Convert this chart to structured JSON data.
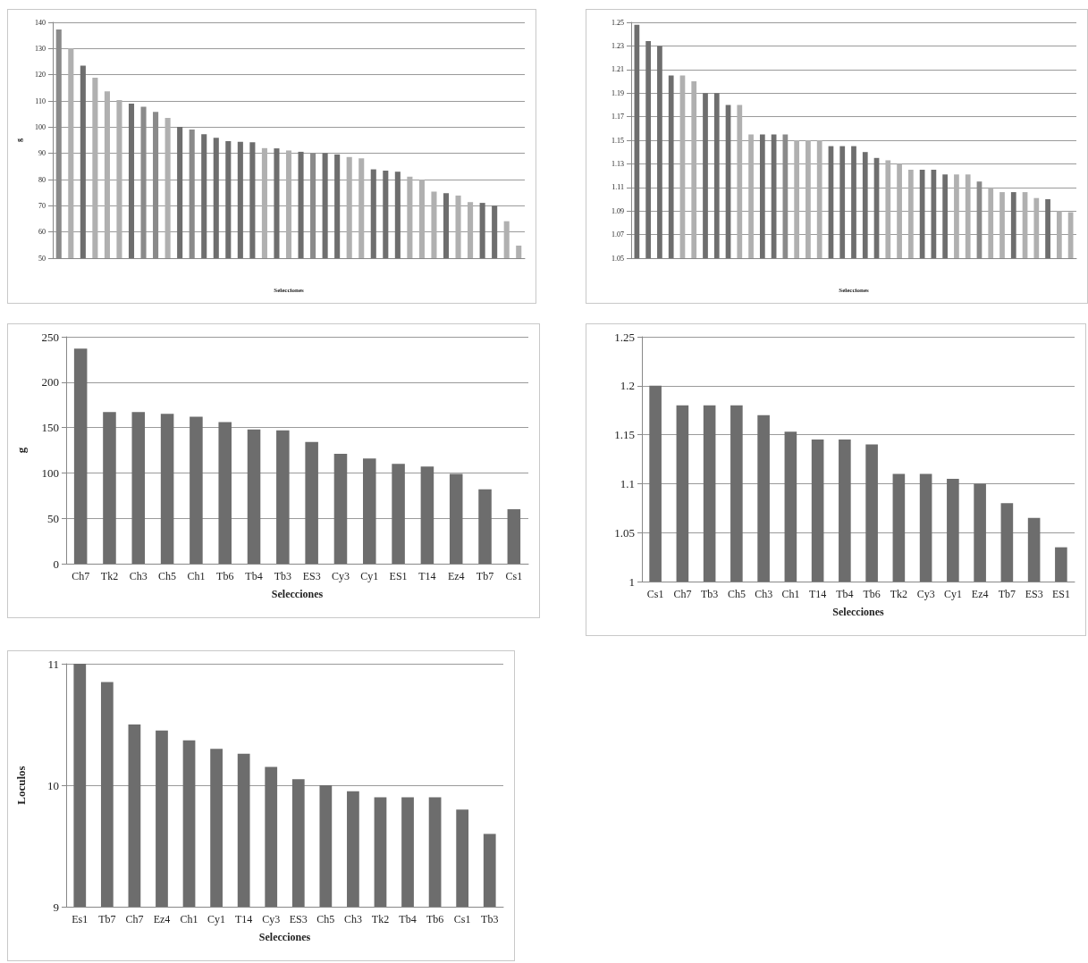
{
  "chart_data": [
    {
      "type": "bar",
      "xlabel": "Selecciones",
      "ylabel": "g",
      "categories": [
        null,
        null,
        null,
        null,
        null,
        null,
        null,
        null,
        null,
        null,
        null,
        null,
        null,
        null,
        null,
        null,
        null,
        null,
        null,
        null,
        null,
        null,
        null,
        null,
        null,
        null,
        null,
        null,
        null,
        null,
        null,
        null,
        null,
        null,
        null,
        null,
        null,
        null,
        null
      ],
      "values": [
        137.3,
        130.1,
        123.5,
        118.9,
        113.7,
        110.3,
        109.0,
        107.8,
        105.8,
        103.5,
        100.1,
        99.1,
        97.3,
        95.9,
        94.7,
        94.4,
        94.2,
        92.0,
        91.9,
        91.1,
        90.6,
        90.1,
        90.1,
        89.6,
        88.6,
        88.1,
        83.9,
        83.4,
        83.0,
        81.1,
        80.0,
        75.4,
        74.8,
        73.9,
        71.4,
        71.1,
        70.0,
        64.1,
        54.8
      ],
      "colors": [
        "#8a8a8a",
        "#b0b0b0",
        "#6e6e6e",
        "#b0b0b0",
        "#b0b0b0",
        "#b0b0b0",
        "#6e6e6e",
        "#8a8a8a",
        "#8a8a8a",
        "#b0b0b0",
        "#6e6e6e",
        "#8a8a8a",
        "#6e6e6e",
        "#6e6e6e",
        "#6e6e6e",
        "#6e6e6e",
        "#6e6e6e",
        "#b0b0b0",
        "#6e6e6e",
        "#b0b0b0",
        "#6e6e6e",
        "#8a8a8a",
        "#6e6e6e",
        "#6e6e6e",
        "#b0b0b0",
        "#b0b0b0",
        "#6e6e6e",
        "#6e6e6e",
        "#6e6e6e",
        "#b0b0b0",
        "#b0b0b0",
        "#b0b0b0",
        "#6e6e6e",
        "#b0b0b0",
        "#b0b0b0",
        "#6e6e6e",
        "#6e6e6e",
        "#b0b0b0",
        "#b0b0b0"
      ],
      "ylim": [
        50,
        140
      ],
      "yticks": [
        50,
        60,
        70,
        80,
        90,
        100,
        110,
        120,
        130,
        140
      ],
      "grid": "y"
    },
    {
      "type": "bar",
      "xlabel": "Selecciones",
      "categories": [
        null,
        null,
        null,
        null,
        null,
        null,
        null,
        null,
        null,
        null,
        null,
        null,
        null,
        null,
        null,
        null,
        null,
        null,
        null,
        null,
        null,
        null,
        null,
        null,
        null,
        null,
        null,
        null,
        null,
        null,
        null,
        null,
        null,
        null,
        null,
        null,
        null,
        null,
        null
      ],
      "values": [
        1.248,
        1.234,
        1.23,
        1.205,
        1.205,
        1.2,
        1.19,
        1.19,
        1.18,
        1.18,
        1.155,
        1.155,
        1.155,
        1.155,
        1.15,
        1.15,
        1.15,
        1.145,
        1.145,
        1.145,
        1.14,
        1.135,
        1.133,
        1.13,
        1.125,
        1.125,
        1.125,
        1.121,
        1.121,
        1.121,
        1.115,
        1.11,
        1.106,
        1.106,
        1.106,
        1.101,
        1.1,
        1.09,
        1.089
      ],
      "colors": [
        "#6e6e6e",
        "#6e6e6e",
        "#6e6e6e",
        "#6e6e6e",
        "#b0b0b0",
        "#b0b0b0",
        "#6e6e6e",
        "#6e6e6e",
        "#6e6e6e",
        "#b0b0b0",
        "#b0b0b0",
        "#6e6e6e",
        "#6e6e6e",
        "#8a8a8a",
        "#b0b0b0",
        "#b0b0b0",
        "#b0b0b0",
        "#6e6e6e",
        "#6e6e6e",
        "#6e6e6e",
        "#6e6e6e",
        "#6e6e6e",
        "#b0b0b0",
        "#b0b0b0",
        "#b0b0b0",
        "#6e6e6e",
        "#6e6e6e",
        "#6e6e6e",
        "#b0b0b0",
        "#b0b0b0",
        "#8a8a8a",
        "#b0b0b0",
        "#b0b0b0",
        "#6e6e6e",
        "#b0b0b0",
        "#b0b0b0",
        "#6e6e6e",
        "#b0b0b0",
        "#b0b0b0"
      ],
      "ylim": [
        1.05,
        1.25
      ],
      "yticks": [
        1.05,
        1.07,
        1.09,
        1.11,
        1.13,
        1.15,
        1.17,
        1.19,
        1.21,
        1.23,
        1.25
      ],
      "grid": "y"
    },
    {
      "type": "bar",
      "xlabel": "Selecciones",
      "ylabel": "g",
      "categories": [
        "Ch7",
        "Tk2",
        "Ch3",
        "Ch5",
        "Ch1",
        "Tb6",
        "Tb4",
        "Tb3",
        "ES3",
        "Cy3",
        "Cy1",
        "ES1",
        "T14",
        "Ez4",
        "Tb7",
        "Cs1"
      ],
      "values": [
        237,
        167,
        167,
        165,
        162,
        156,
        148,
        147,
        134,
        121,
        116,
        110,
        107,
        99,
        82,
        60
      ],
      "color": "#6d6d6d",
      "ylim": [
        0,
        250
      ],
      "yticks": [
        0,
        50,
        100,
        150,
        200,
        250
      ],
      "grid": "y"
    },
    {
      "type": "bar",
      "xlabel": "Selecciones",
      "categories": [
        "Cs1",
        "Ch7",
        "Tb3",
        "Ch5",
        "Ch3",
        "Ch1",
        "T14",
        "Tb4",
        "Tb6",
        "Tk2",
        "Cy3",
        "Cy1",
        "Ez4",
        "Tb7",
        "ES3",
        "ES1"
      ],
      "values": [
        1.2,
        1.18,
        1.18,
        1.18,
        1.17,
        1.153,
        1.145,
        1.145,
        1.14,
        1.11,
        1.11,
        1.105,
        1.1,
        1.08,
        1.065,
        1.035
      ],
      "color": "#6d6d6d",
      "ylim": [
        1,
        1.25
      ],
      "yticks": [
        1,
        1.05,
        1.1,
        1.15,
        1.2,
        1.25
      ],
      "grid": "y"
    },
    {
      "type": "bar",
      "xlabel": "Selecciones",
      "ylabel": "Loculos",
      "categories": [
        "Es1",
        "Tb7",
        "Ch7",
        "Ez4",
        "Ch1",
        "Cy1",
        "T14",
        "Cy3",
        "ES3",
        "Ch5",
        "Ch3",
        "Tk2",
        "Tb4",
        "Tb6",
        "Cs1",
        "Tb3"
      ],
      "values": [
        11,
        10.85,
        10.5,
        10.45,
        10.37,
        10.3,
        10.26,
        10.15,
        10.05,
        10,
        9.95,
        9.9,
        9.9,
        9.9,
        9.8,
        9.6
      ],
      "color": "#6d6d6d",
      "ylim": [
        9,
        11
      ],
      "yticks": [
        9,
        10,
        11
      ],
      "grid": "y"
    }
  ]
}
